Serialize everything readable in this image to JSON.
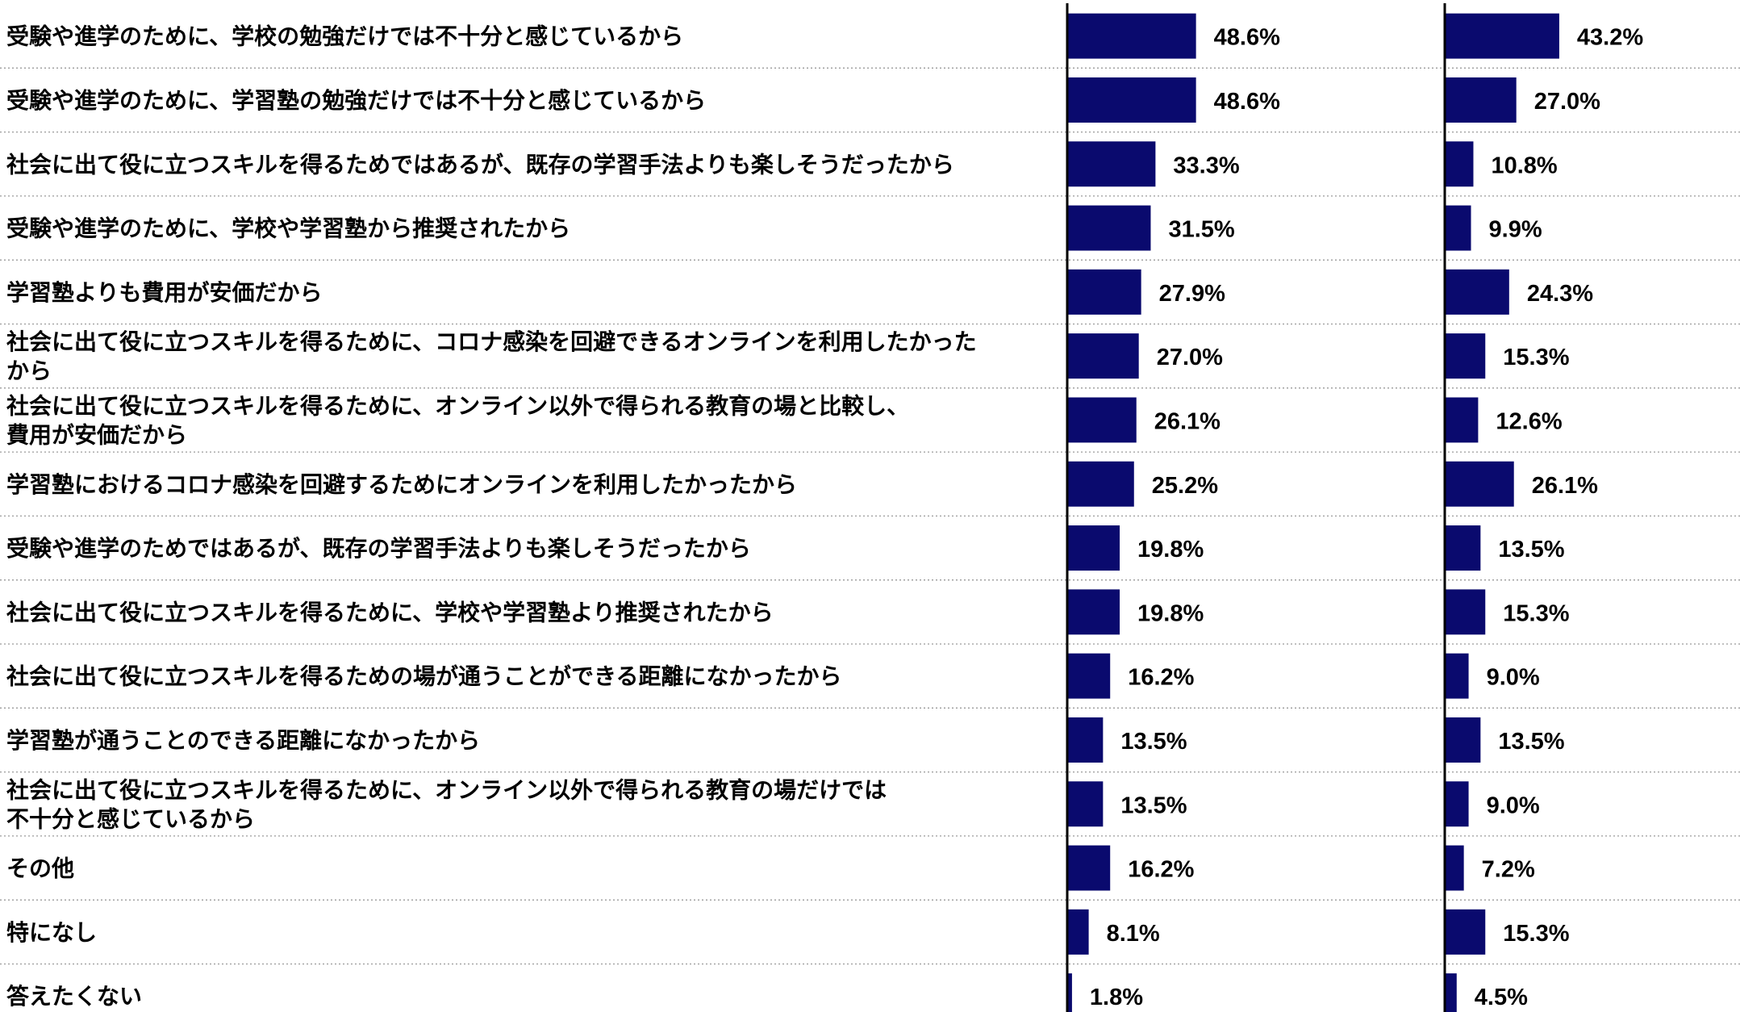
{
  "chart_data": {
    "type": "bar",
    "orientation": "horizontal",
    "title": "",
    "xlabel": "",
    "ylabel": "",
    "xlim": [
      0,
      100
    ],
    "grid": false,
    "legend": "none",
    "bar_color": "#0a0a6e",
    "row_separator": "dotted",
    "categories": [
      [
        "受験や進学のために、学校の勉強だけでは不十分と感じているから"
      ],
      [
        "受験や進学のために、学習塾の勉強だけでは不十分と感じているから"
      ],
      [
        "社会に出て役に立つスキルを得るためではあるが、既存の学習手法よりも楽しそうだったから"
      ],
      [
        "受験や進学のために、学校や学習塾から推奨されたから"
      ],
      [
        "学習塾よりも費用が安価だから"
      ],
      [
        "社会に出て役に立つスキルを得るために、コロナ感染を回避できるオンラインを利用したかった",
        "から"
      ],
      [
        "社会に出て役に立つスキルを得るために、オンライン以外で得られる教育の場と比較し、",
        "費用が安価だから"
      ],
      [
        "学習塾におけるコロナ感染を回避するためにオンラインを利用したかったから"
      ],
      [
        "受験や進学のためではあるが、既存の学習手法よりも楽しそうだったから"
      ],
      [
        "社会に出て役に立つスキルを得るために、学校や学習塾より推奨されたから"
      ],
      [
        "社会に出て役に立つスキルを得るための場が通うことができる距離になかったから"
      ],
      [
        "学習塾が通うことのできる距離になかったから"
      ],
      [
        "社会に出て役に立つスキルを得るために、オンライン以外で得られる教育の場だけでは",
        "不十分と感じているから"
      ],
      [
        "その他"
      ],
      [
        "特になし"
      ],
      [
        "答えたくない"
      ]
    ],
    "series": [
      {
        "values": [
          48.6,
          48.6,
          33.3,
          31.5,
          27.9,
          27.0,
          26.1,
          25.2,
          19.8,
          19.8,
          16.2,
          13.5,
          13.5,
          16.2,
          8.1,
          1.8
        ],
        "labels": [
          "48.6%",
          "48.6%",
          "33.3%",
          "31.5%",
          "27.9%",
          "27.0%",
          "26.1%",
          "25.2%",
          "19.8%",
          "19.8%",
          "16.2%",
          "13.5%",
          "13.5%",
          "16.2%",
          "8.1%",
          "1.8%"
        ]
      },
      {
        "values": [
          43.2,
          27.0,
          10.8,
          9.9,
          24.3,
          15.3,
          12.6,
          26.1,
          13.5,
          15.3,
          9.0,
          13.5,
          9.0,
          7.2,
          15.3,
          4.5
        ],
        "labels": [
          "43.2%",
          "27.0%",
          "10.8%",
          "9.9%",
          "24.3%",
          "15.3%",
          "12.6%",
          "26.1%",
          "13.5%",
          "15.3%",
          "9.0%",
          "13.5%",
          "9.0%",
          "7.2%",
          "15.3%",
          "4.5%"
        ]
      }
    ]
  }
}
